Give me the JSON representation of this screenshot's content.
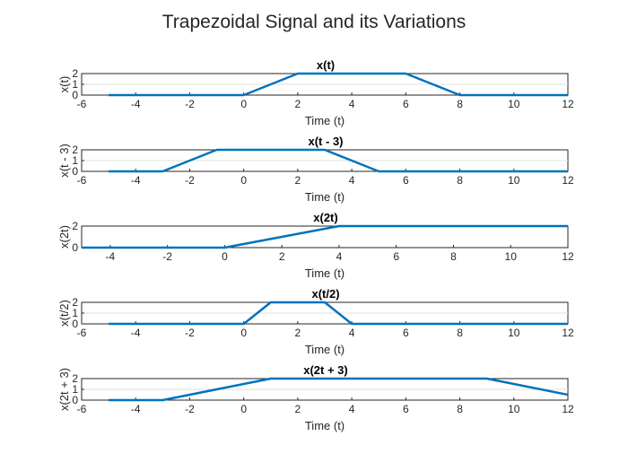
{
  "figure_title": "Trapezoidal Signal and its Variations",
  "chart_data": [
    {
      "type": "line",
      "title": "x(t)",
      "xlabel": "Time (t)",
      "ylabel": "x(t)",
      "xlim": [
        -6,
        12
      ],
      "ylim": [
        0,
        2
      ],
      "xticks": [
        "-6",
        "-4",
        "-2",
        "0",
        "2",
        "4",
        "6",
        "8",
        "10",
        "12"
      ],
      "yticks": [
        "0",
        "1",
        "2"
      ],
      "grid": true,
      "series": [
        {
          "x": [
            -5,
            0,
            2,
            6,
            8,
            12
          ],
          "y": [
            0,
            0,
            2,
            2,
            0,
            0
          ],
          "color": "#0072BD"
        }
      ]
    },
    {
      "type": "line",
      "title": "x(t - 3)",
      "xlabel": "Time (t)",
      "ylabel": "x(t - 3)",
      "xlim": [
        -6,
        12
      ],
      "ylim": [
        0,
        2
      ],
      "xticks": [
        "-6",
        "-4",
        "-2",
        "0",
        "2",
        "4",
        "6",
        "8",
        "10",
        "12"
      ],
      "yticks": [
        "0",
        "1",
        "2"
      ],
      "grid": true,
      "series": [
        {
          "x": [
            -5,
            -3,
            -1,
            3,
            5,
            12
          ],
          "y": [
            0,
            0,
            2,
            2,
            0,
            0
          ],
          "color": "#0072BD"
        }
      ]
    },
    {
      "type": "line",
      "title": "x(2t)",
      "xlabel": "Time (t)",
      "ylabel": "x(2t)",
      "xlim": [
        -5,
        12
      ],
      "ylim": [
        0,
        2
      ],
      "xticks": [
        "-4",
        "-2",
        "0",
        "2",
        "4",
        "6",
        "8",
        "10",
        "12"
      ],
      "yticks": [
        "0",
        "2"
      ],
      "grid": true,
      "series": [
        {
          "x": [
            -5,
            0,
            4,
            12
          ],
          "y": [
            0,
            0,
            2,
            2
          ],
          "color": "#0072BD"
        }
      ]
    },
    {
      "type": "line",
      "title": "x(t/2)",
      "xlabel": "Time (t)",
      "ylabel": "x(t/2)",
      "xlim": [
        -6,
        12
      ],
      "ylim": [
        0,
        2
      ],
      "xticks": [
        "-6",
        "-4",
        "-2",
        "0",
        "2",
        "4",
        "6",
        "8",
        "10",
        "12"
      ],
      "yticks": [
        "0",
        "1",
        "2"
      ],
      "grid": true,
      "series": [
        {
          "x": [
            -5,
            0,
            1,
            3,
            4,
            12
          ],
          "y": [
            0,
            0,
            2,
            2,
            0,
            0
          ],
          "color": "#0072BD"
        }
      ]
    },
    {
      "type": "line",
      "title": "x(2t + 3)",
      "xlabel": "Time (t)",
      "ylabel": "x(2t + 3)",
      "xlim": [
        -6,
        12
      ],
      "ylim": [
        0,
        2
      ],
      "xticks": [
        "-6",
        "-4",
        "-2",
        "0",
        "2",
        "4",
        "6",
        "8",
        "10",
        "12"
      ],
      "yticks": [
        "0",
        "1",
        "2"
      ],
      "grid": true,
      "series": [
        {
          "x": [
            -5,
            -3,
            1,
            9,
            13
          ],
          "y": [
            0,
            0,
            2,
            2,
            0
          ],
          "color": "#0072BD"
        }
      ]
    }
  ]
}
